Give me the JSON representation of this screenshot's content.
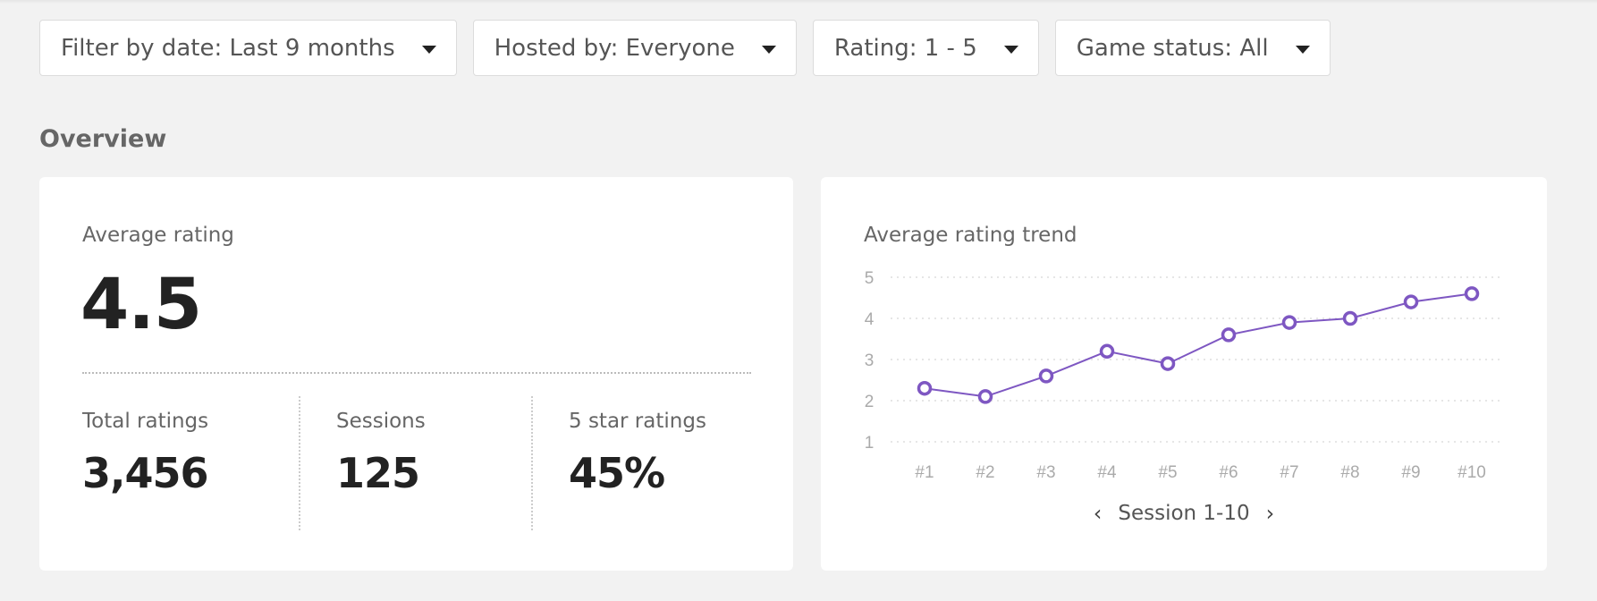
{
  "filters": {
    "date": "Filter by date: Last 9 months",
    "host": "Hosted by: Everyone",
    "rating": "Rating: 1 - 5",
    "status": "Game status: All"
  },
  "overview": {
    "title": "Overview",
    "average_rating_label": "Average rating",
    "average_rating_value": "4.5",
    "stats": [
      {
        "label": "Total ratings",
        "value": "3,456"
      },
      {
        "label": "Sessions",
        "value": "125"
      },
      {
        "label": "5 star ratings",
        "value": "45%"
      }
    ]
  },
  "trend": {
    "title": "Average rating trend",
    "pager_label": "Session 1-10"
  },
  "chart_data": {
    "type": "line",
    "title": "Average rating trend",
    "categories": [
      "#1",
      "#2",
      "#3",
      "#4",
      "#5",
      "#6",
      "#7",
      "#8",
      "#9",
      "#10"
    ],
    "values": [
      2.3,
      2.1,
      2.6,
      3.2,
      2.9,
      3.6,
      3.9,
      4.0,
      4.4,
      4.6
    ],
    "yticks": [
      1,
      2,
      3,
      4,
      5
    ],
    "ylim": [
      1,
      5
    ],
    "grid": true,
    "color": "#7e57c2"
  }
}
